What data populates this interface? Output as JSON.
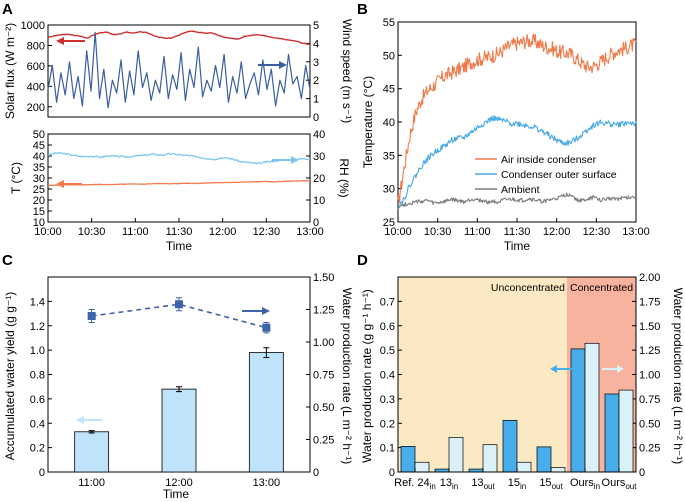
{
  "chart_data": [
    {
      "panel": "A",
      "type": "line",
      "title": "",
      "xlabel": "Time",
      "x_ticks": [
        "10:00",
        "10:30",
        "11:00",
        "11:30",
        "12:00",
        "12:30",
        "13:00"
      ],
      "top": {
        "ylabel_left": "Solar flux (W m⁻²)",
        "ylabel_right": "Wind speed (m s⁻¹)",
        "ylim_left": [
          100,
          1000
        ],
        "yticks_left": [
          "200",
          "400",
          "600",
          "800",
          "1000"
        ],
        "ylim_right": [
          0,
          5
        ],
        "yticks_right": [
          "0",
          "1",
          "2",
          "3",
          "4",
          "5"
        ],
        "series": [
          {
            "name": "Solar flux",
            "axis": "left",
            "color": "#cc2f2f",
            "values": [
              880,
              895,
              905,
              910,
              900,
              890,
              870,
              905,
              925,
              930,
              905,
              915,
              930,
              920,
              935,
              925,
              900,
              880,
              870,
              875,
              900,
              930,
              940,
              930,
              920,
              925,
              900,
              880,
              870,
              860,
              890,
              900,
              905,
              895,
              880,
              870,
              860,
              850,
              840,
              820,
              810
            ]
          },
          {
            "name": "Wind speed",
            "axis": "right",
            "color": "#3a5fa0",
            "values": [
              1.5,
              2.8,
              0.8,
              2.4,
              1.2,
              3.0,
              1.0,
              2.2,
              0.6,
              3.6,
              1.4,
              4.6,
              1.0,
              2.6,
              0.5,
              2.0,
              1.3,
              3.1,
              0.8,
              2.5,
              1.2,
              3.6,
              1.6,
              2.4,
              0.9,
              2.0,
              1.3,
              3.3,
              1.0,
              2.3,
              1.5,
              3.5,
              0.9,
              2.6,
              1.6,
              3.8,
              1.1,
              2.0,
              1.4,
              2.8,
              1.6,
              3.4,
              0.8,
              2.2,
              1.3,
              3.0,
              1.0,
              1.8,
              2.4,
              1.2,
              3.1,
              1.5,
              2.6,
              0.6,
              2.0,
              1.3,
              3.4,
              1.8,
              2.2,
              1.0,
              2.8,
              1.5
            ]
          }
        ]
      },
      "bottom": {
        "ylabel_left": "T (°C)",
        "ylabel_right": "RH (%)",
        "ylim_left": [
          10,
          50
        ],
        "yticks_left": [
          "10",
          "15",
          "20",
          "25",
          "30",
          "35",
          "40",
          "45",
          "50"
        ],
        "ylim_right": [
          0,
          40
        ],
        "yticks_right": [
          "0",
          "10",
          "20",
          "30",
          "40"
        ],
        "series": [
          {
            "name": "T",
            "axis": "left",
            "color": "#f07a4a",
            "values": [
              26.6,
              26.8,
              26.9,
              27.0,
              26.9,
              27.0,
              27.1,
              27.0,
              27.1,
              27.2,
              27.3,
              27.2,
              27.4,
              27.5,
              27.4,
              27.5,
              27.6,
              27.5,
              27.7,
              27.8,
              27.9,
              28.0,
              28.1,
              28.2,
              28.3,
              28.4,
              28.3,
              28.5,
              28.6,
              28.7,
              28.8
            ]
          },
          {
            "name": "RH",
            "axis": "right",
            "color": "#7cc7ef",
            "values": [
              30.5,
              31.4,
              31.0,
              30.2,
              29.7,
              29.9,
              29.5,
              30.1,
              29.8,
              29.6,
              30.0,
              30.3,
              30.8,
              30.4,
              31.0,
              30.6,
              30.1,
              29.8,
              29.0,
              28.5,
              29.2,
              28.8,
              27.5,
              27.0,
              26.5,
              27.2,
              27.8,
              28.4,
              28.2,
              28.8,
              28.6
            ]
          }
        ]
      }
    },
    {
      "panel": "B",
      "type": "line",
      "xlabel": "Time",
      "ylabel": "Temperature (°C)",
      "ylim": [
        25,
        55
      ],
      "yticks": [
        "25",
        "30",
        "35",
        "40",
        "45",
        "50",
        "55"
      ],
      "x_ticks": [
        "10:00",
        "10:30",
        "11:00",
        "11:30",
        "12:00",
        "12:30",
        "13:00"
      ],
      "legend": "center-right",
      "series": [
        {
          "name": "Air inside condenser",
          "color": "#f07a4a",
          "values": [
            27.5,
            33,
            38,
            41.5,
            43.5,
            44.7,
            45.5,
            46.3,
            47,
            47.4,
            47.8,
            48.2,
            48.8,
            49.2,
            49.5,
            49.7,
            50,
            50.3,
            51,
            51.5,
            51.8,
            52,
            52.2,
            52.1,
            51.6,
            51.2,
            51,
            50.5,
            50.4,
            50.2,
            49.5,
            48.7,
            48.2,
            48.4,
            49,
            49.7,
            50.3,
            50.8,
            51,
            51.4,
            51.6
          ]
        },
        {
          "name": "Condenser outer surface",
          "color": "#45a9e6",
          "values": [
            27.3,
            28.5,
            30.5,
            32,
            33.5,
            34.5,
            35.3,
            36,
            36.5,
            37.3,
            37.5,
            37.6,
            38.3,
            38.9,
            39.6,
            40.1,
            40.6,
            40.3,
            40.1,
            39.8,
            39.8,
            39.6,
            39.4,
            39.2,
            38.7,
            38.2,
            37.6,
            37.1,
            36.8,
            36.9,
            37.5,
            38.2,
            39,
            39.6,
            39.9,
            39.8,
            39.7,
            39.6,
            39.8,
            39.9,
            39.7
          ]
        },
        {
          "name": "Ambient",
          "color": "#7d7d7d",
          "values": [
            27.4,
            27.6,
            27.8,
            28,
            28.1,
            28.2,
            27.8,
            27.9,
            28.1,
            28.4,
            28.2,
            28,
            28.3,
            28.5,
            28.2,
            28,
            28.1,
            28,
            28.3,
            28.4,
            28.3,
            28.2,
            28.5,
            28.3,
            28.1,
            28.2,
            28.4,
            28.6,
            29,
            29.2,
            28.3,
            28.2,
            28.5,
            28.7,
            28.3,
            28.4,
            28.6,
            28.5,
            28.6,
            28.7,
            28.8
          ]
        }
      ]
    },
    {
      "panel": "C",
      "type": "bar",
      "xlabel": "Time",
      "ylabel_left": "Accumulated water yield (g g⁻¹)",
      "ylabel_right": "Water production rate (L m⁻² h⁻¹)",
      "categories": [
        "11:00",
        "12:00",
        "13:00"
      ],
      "ylim_left": [
        0,
        1.6
      ],
      "yticks_left": [
        "0",
        "0.2",
        "0.4",
        "0.6",
        "0.8",
        "1.0",
        "1.2",
        "1.4"
      ],
      "ylim_right": [
        0,
        1.5
      ],
      "yticks_right": [
        "0",
        "0.25",
        "0.50",
        "0.75",
        "1.00",
        "1.25",
        "1.50"
      ],
      "series": [
        {
          "name": "Accumulated water yield",
          "axis": "left",
          "type": "bar",
          "color": "#bfe3fb",
          "values": [
            0.33,
            0.68,
            0.98
          ],
          "errors": [
            0.01,
            0.02,
            0.04
          ]
        },
        {
          "name": "Water production rate",
          "axis": "right",
          "type": "line-dashed",
          "color": "#3d63a8",
          "values": [
            1.2,
            1.29,
            1.11
          ],
          "errors": [
            0.05,
            0.05,
            0.04
          ]
        }
      ]
    },
    {
      "panel": "D",
      "type": "bar",
      "ylabel_left": "Water production rate (g g⁻¹ h⁻¹)",
      "ylabel_right": "Water production rate (L m⁻² h⁻¹)",
      "ylim_left": [
        0,
        0.8
      ],
      "yticks_left": [
        "0",
        "0.1",
        "0.2",
        "0.3",
        "0.4",
        "0.5",
        "0.6",
        "0.7"
      ],
      "ylim_right": [
        0,
        2.0
      ],
      "yticks_right": [
        "0",
        "0.25",
        "0.50",
        "0.75",
        "1.00",
        "1.25",
        "1.50",
        "1.75",
        "2.00"
      ],
      "regions": [
        "Unconcentrated",
        "Concentrated"
      ],
      "categories": [
        {
          "base": "Ref. 24",
          "sub": "in"
        },
        {
          "base": "13",
          "sub": "in"
        },
        {
          "base": "13",
          "sub": "out"
        },
        {
          "base": "15",
          "sub": "in"
        },
        {
          "base": "15",
          "sub": "out"
        },
        {
          "base": "Ours",
          "sub": "in"
        },
        {
          "base": "Ours",
          "sub": "out"
        }
      ],
      "series": [
        {
          "name": "g g⁻¹ h⁻¹",
          "axis": "left",
          "color": "#47aeeb",
          "values": [
            0.105,
            0.012,
            0.012,
            0.212,
            0.103,
            0.505,
            0.32
          ]
        },
        {
          "name": "L m⁻² h⁻¹",
          "axis": "right",
          "color": "#daf1f7",
          "values": [
            0.1,
            0.355,
            0.28,
            0.1,
            0.045,
            1.32,
            0.84
          ]
        }
      ]
    }
  ],
  "panel_labels": [
    "A",
    "B",
    "C",
    "D"
  ],
  "colors": {
    "red": "#cc2f2f",
    "navy": "#3a5fa0",
    "orange": "#f07a4a",
    "light_blue": "#7cc7ef",
    "unconc_bg": "#fbe9c3",
    "conc_bg": "#f7b39e"
  }
}
